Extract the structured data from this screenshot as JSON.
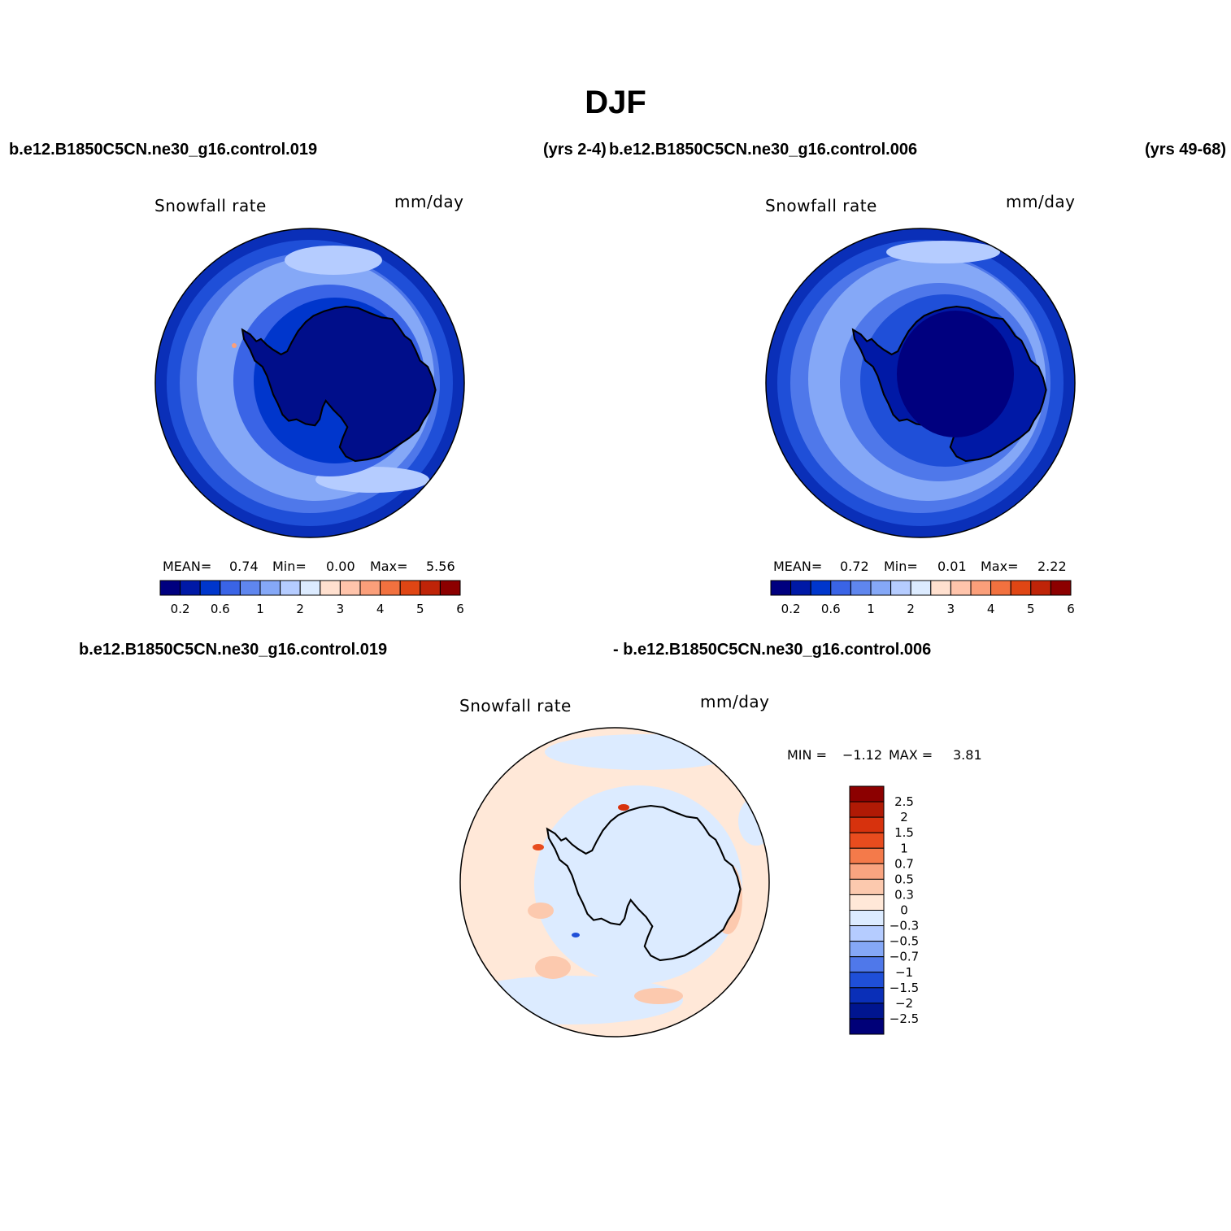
{
  "figure": {
    "title": "DJF",
    "run_a_title": "b.e12.B1850C5CN.ne30_g16.control.019",
    "run_a_years": "(yrs 2-4)",
    "run_b_title": "b.e12.B1850C5CN.ne30_g16.control.006",
    "run_b_years": "(yrs 49-68)",
    "diff_title_left": "b.e12.B1850C5CN.ne30_g16.control.019",
    "diff_title_right": "- b.e12.B1850C5CN.ne30_g16.control.006"
  },
  "chart_data": [
    {
      "type": "map",
      "projection": "south-polar-stereographic",
      "variable": "Snowfall rate",
      "units": "mm/day",
      "stats": {
        "mean_label": "MEAN=",
        "mean": "0.74",
        "min_label": "Min=",
        "min": "0.00",
        "max_label": "Max=",
        "max": "5.56"
      },
      "colorbar": {
        "orientation": "horizontal",
        "levels": [
          0.2,
          0.4,
          0.6,
          0.8,
          1,
          1.5,
          2,
          2.5,
          3,
          3.5,
          4,
          4.5,
          5,
          5.5,
          6
        ],
        "tick_labels": [
          "0.2",
          "0.6",
          "1",
          "2",
          "3",
          "4",
          "5",
          "6"
        ],
        "colors": [
          "#00007f",
          "#0019a6",
          "#0036cc",
          "#3a64e6",
          "#5f86ee",
          "#85a8f7",
          "#b5ccff",
          "#dcebff",
          "#ffe0cf",
          "#ffc4ab",
          "#fb9f7a",
          "#f2713f",
          "#e04614",
          "#bf2408",
          "#8c0000"
        ]
      }
    },
    {
      "type": "map",
      "projection": "south-polar-stereographic",
      "variable": "Snowfall rate",
      "units": "mm/day",
      "stats": {
        "mean_label": "MEAN=",
        "mean": "0.72",
        "min_label": "Min=",
        "min": "0.01",
        "max_label": "Max=",
        "max": "2.22"
      },
      "colorbar": {
        "orientation": "horizontal",
        "levels": [
          0.2,
          0.4,
          0.6,
          0.8,
          1,
          1.5,
          2,
          2.5,
          3,
          3.5,
          4,
          4.5,
          5,
          5.5,
          6
        ],
        "tick_labels": [
          "0.2",
          "0.6",
          "1",
          "2",
          "3",
          "4",
          "5",
          "6"
        ],
        "colors": [
          "#00007f",
          "#0019a6",
          "#0036cc",
          "#3a64e6",
          "#5f86ee",
          "#85a8f7",
          "#b5ccff",
          "#dcebff",
          "#ffe0cf",
          "#ffc4ab",
          "#fb9f7a",
          "#f2713f",
          "#e04614",
          "#bf2408",
          "#8c0000"
        ]
      }
    },
    {
      "type": "map",
      "projection": "south-polar-stereographic",
      "variable": "Snowfall rate",
      "units": "mm/day",
      "stats": {
        "min_label": "MIN =",
        "min": "−1.12",
        "max_label": "MAX =",
        "max": "3.81"
      },
      "colorbar": {
        "orientation": "vertical",
        "tick_labels": [
          "2.5",
          "2",
          "1.5",
          "1",
          "0.7",
          "0.5",
          "0.3",
          "0",
          "−0.3",
          "−0.5",
          "−0.7",
          "−1",
          "−1.5",
          "−2",
          "−2.5"
        ],
        "colors": [
          "#8c0000",
          "#b01a05",
          "#d7320d",
          "#e84c1e",
          "#f47a4a",
          "#f9a480",
          "#fcc9ae",
          "#ffe8d8",
          "#dcebff",
          "#b5ccff",
          "#85a8f7",
          "#4f78ea",
          "#1f4fd8",
          "#0a2fb8",
          "#00158f",
          "#000078"
        ]
      }
    }
  ]
}
